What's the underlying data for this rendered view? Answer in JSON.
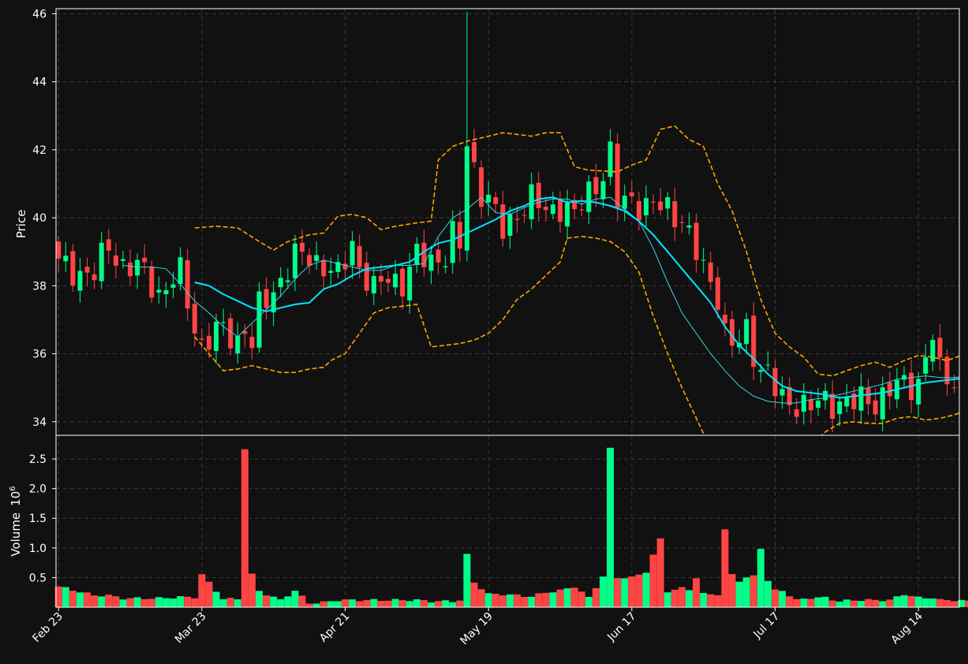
{
  "colors": {
    "background": "#111111",
    "up": "#00ff88",
    "down": "#ff4444",
    "ma_fast": "#37d6e4",
    "ma_slow": "#00e5ff",
    "bollinger": "#ffa500",
    "grid": "#3a3a3a",
    "axis": "#ffffff"
  },
  "chart_data": {
    "type": "candlestick",
    "grid": true,
    "price_panel": {
      "ylabel": "Price",
      "ylim": [
        33.6,
        46.15
      ],
      "yticks": [
        "34",
        "36",
        "38",
        "40",
        "42",
        "44",
        "46"
      ],
      "overlays": [
        {
          "name": "moving average 10 (thin cyan)"
        },
        {
          "name": "moving average 20 (thick cyan)"
        },
        {
          "name": "Bollinger bands (dashed orange)"
        }
      ]
    },
    "volume_panel": {
      "ylabel": "Volume",
      "scale_label": "10",
      "scale_exp": "6",
      "ylim": [
        0,
        2.9
      ],
      "yticks": [
        "0.5",
        "1.0",
        "1.5",
        "2.0",
        "2.5"
      ]
    },
    "x_ticks": [
      {
        "label": "Feb 23",
        "index": 0
      },
      {
        "label": "Mar 23",
        "index": 20
      },
      {
        "label": "Apr 21",
        "index": 40
      },
      {
        "label": "May 19",
        "index": 60
      },
      {
        "label": "Jun 17",
        "index": 80
      },
      {
        "label": "Jul 17",
        "index": 100
      },
      {
        "label": "Aug 14",
        "index": 120
      }
    ],
    "anchors": [
      [
        0,
        38.6,
        0.35
      ],
      [
        5,
        38.3,
        0.2
      ],
      [
        7,
        39.2,
        0.2
      ],
      [
        9,
        38.6,
        0.15
      ],
      [
        12,
        38.4,
        0.15
      ],
      [
        14,
        37.8,
        0.15
      ],
      [
        17,
        38.3,
        0.17
      ],
      [
        19,
        36.8,
        0.17
      ],
      [
        20,
        36.3,
        0.55
      ],
      [
        23,
        36.7,
        0.14
      ],
      [
        25,
        36.4,
        0.14
      ],
      [
        26,
        36.8,
        2.68
      ],
      [
        27,
        36.2,
        0.55
      ],
      [
        28,
        37.3,
        0.27
      ],
      [
        31,
        38.2,
        0.12
      ],
      [
        33,
        38.8,
        0.28
      ],
      [
        35,
        38.9,
        0.07
      ],
      [
        37,
        38.6,
        0.08
      ],
      [
        39,
        38.2,
        0.12
      ],
      [
        41,
        39.3,
        0.12
      ],
      [
        42,
        38.6,
        0.12
      ],
      [
        44,
        37.8,
        0.12
      ],
      [
        46,
        38.3,
        0.12
      ],
      [
        48,
        38.1,
        0.12
      ],
      [
        50,
        38.8,
        0.12
      ],
      [
        52,
        38.8,
        0.1
      ],
      [
        54,
        38.9,
        0.1
      ],
      [
        55,
        39.4,
        0.1
      ],
      [
        56,
        39.1,
        0.12
      ],
      [
        57,
        42.2,
        0.88
      ],
      [
        58,
        41.5,
        0.42
      ],
      [
        59,
        40.8,
        0.32
      ],
      [
        60,
        40.5,
        0.22
      ],
      [
        62,
        39.6,
        0.22
      ],
      [
        64,
        40.2,
        0.2
      ],
      [
        66,
        40.5,
        0.18
      ],
      [
        68,
        40.2,
        0.25
      ],
      [
        70,
        40.4,
        0.28
      ],
      [
        72,
        40.0,
        0.35
      ],
      [
        74,
        40.8,
        0.16
      ],
      [
        76,
        41.3,
        0.52
      ],
      [
        77,
        41.8,
        2.67
      ],
      [
        78,
        40.4,
        0.5
      ],
      [
        80,
        40.6,
        0.5
      ],
      [
        82,
        40.3,
        0.6
      ],
      [
        84,
        40.3,
        1.15
      ],
      [
        85,
        40.3,
        0.27
      ],
      [
        87,
        40.0,
        0.32
      ],
      [
        88,
        39.4,
        0.3
      ],
      [
        89,
        38.9,
        0.5
      ],
      [
        90,
        38.5,
        0.22
      ],
      [
        92,
        37.8,
        0.22
      ],
      [
        93,
        36.6,
        1.3
      ],
      [
        94,
        36.2,
        0.55
      ],
      [
        95,
        36.3,
        0.45
      ],
      [
        96,
        36.7,
        0.5
      ],
      [
        97,
        36.1,
        0.52
      ],
      [
        98,
        35.6,
        1.0
      ],
      [
        99,
        35.4,
        0.45
      ],
      [
        100,
        34.9,
        0.28
      ],
      [
        101,
        34.6,
        0.28
      ],
      [
        103,
        34.6,
        0.12
      ],
      [
        105,
        34.4,
        0.16
      ],
      [
        107,
        34.6,
        0.16
      ],
      [
        109,
        34.6,
        0.1
      ],
      [
        111,
        34.5,
        0.12
      ],
      [
        113,
        34.7,
        0.12
      ],
      [
        114,
        34.6,
        0.12
      ],
      [
        116,
        34.9,
        0.12
      ],
      [
        118,
        35.1,
        0.22
      ],
      [
        120,
        35.2,
        0.16
      ],
      [
        122,
        36.5,
        0.16
      ],
      [
        123,
        35.4,
        0.12
      ],
      [
        125,
        35.3,
        0.12
      ],
      [
        127,
        35.4,
        0.1
      ],
      [
        129,
        35.7,
        0.12
      ],
      [
        131,
        35.5,
        0.12
      ],
      [
        133,
        35.3,
        0.12
      ],
      [
        135,
        35.6,
        0.2
      ],
      [
        137,
        35.8,
        0.24
      ],
      [
        138,
        35.6,
        0.22
      ]
    ],
    "bollinger": {
      "upper": [
        [
          19,
          39.7
        ],
        [
          22,
          39.75
        ],
        [
          25,
          39.7
        ],
        [
          28,
          39.3
        ],
        [
          30,
          39.05
        ],
        [
          32,
          39.3
        ],
        [
          35,
          39.5
        ],
        [
          37,
          39.55
        ],
        [
          39,
          40.05
        ],
        [
          41,
          40.1
        ],
        [
          43,
          40.0
        ],
        [
          45,
          39.65
        ],
        [
          47,
          39.75
        ],
        [
          50,
          39.85
        ],
        [
          52,
          39.9
        ],
        [
          53,
          41.7
        ],
        [
          55,
          42.1
        ],
        [
          57,
          42.25
        ],
        [
          60,
          42.4
        ],
        [
          62,
          42.5
        ],
        [
          64,
          42.45
        ],
        [
          66,
          42.4
        ],
        [
          68,
          42.5
        ],
        [
          70,
          42.5
        ],
        [
          72,
          41.5
        ],
        [
          74,
          41.4
        ],
        [
          78,
          41.35
        ],
        [
          80,
          41.55
        ],
        [
          82,
          41.7
        ],
        [
          84,
          42.6
        ],
        [
          86,
          42.7
        ],
        [
          88,
          42.3
        ],
        [
          90,
          42.1
        ],
        [
          92,
          41.0
        ],
        [
          94,
          40.2
        ],
        [
          96,
          39.0
        ],
        [
          98,
          37.6
        ],
        [
          100,
          36.6
        ],
        [
          102,
          36.2
        ],
        [
          104,
          35.9
        ],
        [
          106,
          35.4
        ],
        [
          108,
          35.35
        ],
        [
          110,
          35.5
        ],
        [
          112,
          35.65
        ],
        [
          114,
          35.75
        ],
        [
          116,
          35.6
        ],
        [
          118,
          35.8
        ],
        [
          120,
          35.95
        ],
        [
          122,
          35.9
        ],
        [
          124,
          35.8
        ],
        [
          126,
          35.95
        ],
        [
          128,
          35.85
        ],
        [
          130,
          35.9
        ],
        [
          132,
          35.85
        ],
        [
          134,
          35.9
        ],
        [
          136,
          35.95
        ],
        [
          138,
          35.85
        ]
      ],
      "lower": [
        [
          19,
          36.5
        ],
        [
          21,
          36.0
        ],
        [
          23,
          35.5
        ],
        [
          25,
          35.55
        ],
        [
          27,
          35.65
        ],
        [
          29,
          35.55
        ],
        [
          31,
          35.45
        ],
        [
          33,
          35.45
        ],
        [
          35,
          35.55
        ],
        [
          37,
          35.6
        ],
        [
          38,
          35.8
        ],
        [
          40,
          36.0
        ],
        [
          42,
          36.6
        ],
        [
          44,
          37.2
        ],
        [
          46,
          37.35
        ],
        [
          48,
          37.4
        ],
        [
          50,
          37.45
        ],
        [
          52,
          36.2
        ],
        [
          54,
          36.25
        ],
        [
          56,
          36.3
        ],
        [
          58,
          36.4
        ],
        [
          60,
          36.6
        ],
        [
          62,
          37.0
        ],
        [
          64,
          37.6
        ],
        [
          66,
          37.9
        ],
        [
          68,
          38.3
        ],
        [
          70,
          38.7
        ],
        [
          71,
          39.4
        ],
        [
          73,
          39.45
        ],
        [
          75,
          39.4
        ],
        [
          77,
          39.3
        ],
        [
          79,
          39.0
        ],
        [
          81,
          38.4
        ],
        [
          83,
          37.1
        ],
        [
          85,
          36.0
        ],
        [
          87,
          35.0
        ],
        [
          89,
          34.1
        ],
        [
          91,
          33.2
        ],
        [
          93,
          32.7
        ],
        [
          95,
          32.6
        ],
        [
          97,
          32.5
        ],
        [
          99,
          32.6
        ],
        [
          101,
          32.8
        ],
        [
          103,
          33.0
        ],
        [
          105,
          33.3
        ],
        [
          107,
          33.7
        ],
        [
          109,
          33.95
        ],
        [
          111,
          34.0
        ],
        [
          113,
          33.95
        ],
        [
          115,
          33.95
        ],
        [
          117,
          34.1
        ],
        [
          119,
          34.15
        ],
        [
          121,
          34.05
        ],
        [
          123,
          34.1
        ],
        [
          125,
          34.2
        ],
        [
          127,
          34.35
        ],
        [
          129,
          34.45
        ],
        [
          131,
          34.5
        ],
        [
          133,
          34.5
        ],
        [
          135,
          34.55
        ],
        [
          137,
          34.6
        ],
        [
          138,
          34.6
        ]
      ]
    },
    "ma_slow": [
      [
        19,
        38.1
      ],
      [
        21,
        38.0
      ],
      [
        23,
        37.75
      ],
      [
        25,
        37.55
      ],
      [
        27,
        37.35
      ],
      [
        29,
        37.25
      ],
      [
        31,
        37.35
      ],
      [
        33,
        37.45
      ],
      [
        35,
        37.5
      ],
      [
        37,
        37.9
      ],
      [
        39,
        38.05
      ],
      [
        41,
        38.3
      ],
      [
        43,
        38.5
      ],
      [
        45,
        38.55
      ],
      [
        47,
        38.6
      ],
      [
        49,
        38.7
      ],
      [
        51,
        39.0
      ],
      [
        53,
        39.25
      ],
      [
        55,
        39.35
      ],
      [
        57,
        39.55
      ],
      [
        59,
        39.75
      ],
      [
        61,
        39.95
      ],
      [
        63,
        40.2
      ],
      [
        65,
        40.35
      ],
      [
        67,
        40.55
      ],
      [
        69,
        40.6
      ],
      [
        71,
        40.45
      ],
      [
        73,
        40.5
      ],
      [
        75,
        40.45
      ],
      [
        77,
        40.35
      ],
      [
        79,
        40.2
      ],
      [
        81,
        39.9
      ],
      [
        83,
        39.5
      ],
      [
        85,
        39.0
      ],
      [
        87,
        38.5
      ],
      [
        89,
        38.0
      ],
      [
        91,
        37.5
      ],
      [
        93,
        36.8
      ],
      [
        95,
        36.25
      ],
      [
        97,
        35.85
      ],
      [
        99,
        35.4
      ],
      [
        101,
        35.05
      ],
      [
        103,
        34.9
      ],
      [
        105,
        34.85
      ],
      [
        107,
        34.8
      ],
      [
        109,
        34.7
      ],
      [
        111,
        34.75
      ],
      [
        113,
        34.8
      ],
      [
        115,
        34.85
      ],
      [
        117,
        34.95
      ],
      [
        119,
        35.05
      ],
      [
        121,
        35.15
      ],
      [
        123,
        35.2
      ],
      [
        125,
        35.25
      ],
      [
        127,
        35.3
      ],
      [
        129,
        35.35
      ],
      [
        131,
        35.35
      ],
      [
        133,
        35.4
      ],
      [
        135,
        35.45
      ],
      [
        137,
        35.45
      ],
      [
        138,
        35.5
      ]
    ],
    "ma_fast": [
      [
        9,
        38.6
      ],
      [
        11,
        38.55
      ],
      [
        13,
        38.55
      ],
      [
        15,
        38.5
      ],
      [
        17,
        38.05
      ],
      [
        19,
        37.55
      ],
      [
        21,
        37.2
      ],
      [
        23,
        36.8
      ],
      [
        25,
        36.5
      ],
      [
        27,
        36.9
      ],
      [
        29,
        37.3
      ],
      [
        31,
        37.7
      ],
      [
        33,
        38.2
      ],
      [
        35,
        38.6
      ],
      [
        37,
        38.75
      ],
      [
        39,
        38.65
      ],
      [
        41,
        38.55
      ],
      [
        43,
        38.45
      ],
      [
        45,
        38.45
      ],
      [
        47,
        38.6
      ],
      [
        49,
        38.6
      ],
      [
        51,
        38.65
      ],
      [
        53,
        39.45
      ],
      [
        55,
        40.0
      ],
      [
        57,
        40.25
      ],
      [
        59,
        40.6
      ],
      [
        61,
        40.15
      ],
      [
        63,
        40.1
      ],
      [
        65,
        40.3
      ],
      [
        67,
        40.45
      ],
      [
        69,
        40.55
      ],
      [
        71,
        40.55
      ],
      [
        73,
        40.4
      ],
      [
        75,
        40.55
      ],
      [
        77,
        40.6
      ],
      [
        79,
        40.25
      ],
      [
        81,
        39.9
      ],
      [
        83,
        39.1
      ],
      [
        85,
        38.1
      ],
      [
        87,
        37.2
      ],
      [
        89,
        36.6
      ],
      [
        91,
        36.0
      ],
      [
        93,
        35.5
      ],
      [
        95,
        35.05
      ],
      [
        97,
        34.75
      ],
      [
        99,
        34.6
      ],
      [
        101,
        34.55
      ],
      [
        103,
        34.55
      ],
      [
        105,
        34.65
      ],
      [
        107,
        34.7
      ],
      [
        109,
        34.8
      ],
      [
        111,
        34.9
      ],
      [
        113,
        35.0
      ],
      [
        115,
        35.1
      ],
      [
        117,
        35.25
      ],
      [
        119,
        35.3
      ],
      [
        121,
        35.35
      ],
      [
        123,
        35.3
      ],
      [
        125,
        35.3
      ],
      [
        127,
        35.35
      ],
      [
        129,
        35.45
      ],
      [
        131,
        35.4
      ],
      [
        133,
        35.35
      ],
      [
        135,
        35.45
      ],
      [
        137,
        35.5
      ],
      [
        138,
        35.5
      ]
    ]
  }
}
